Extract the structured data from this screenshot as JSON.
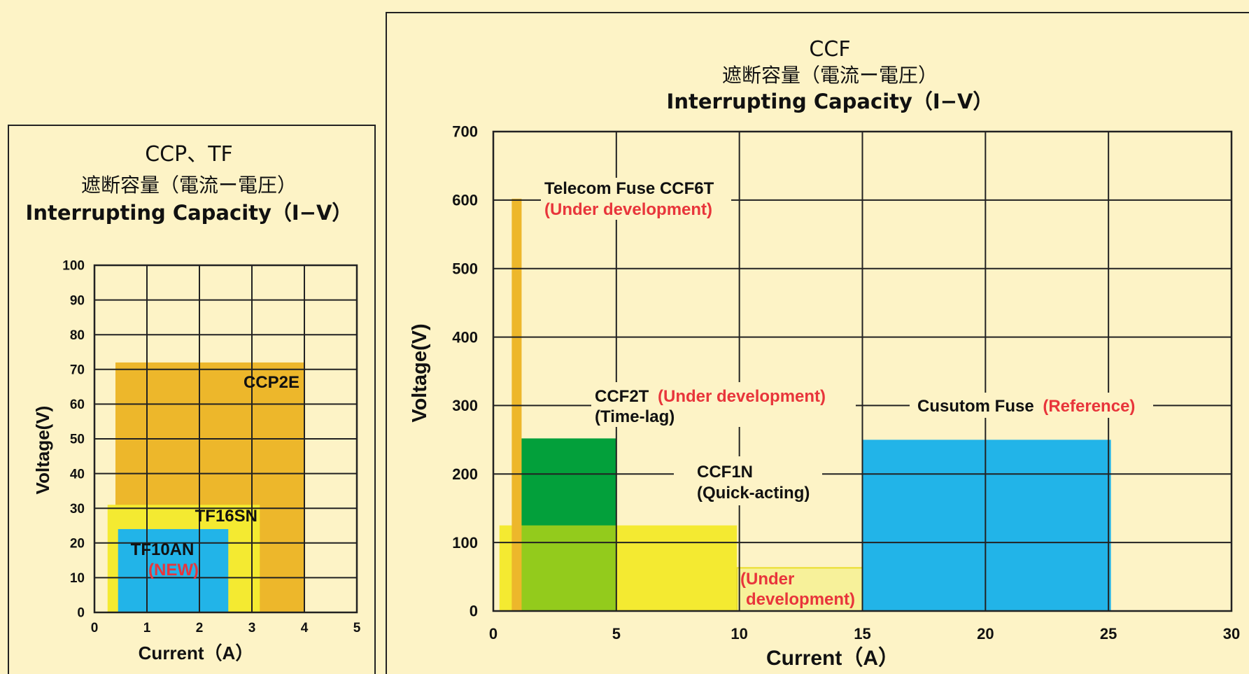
{
  "colors": {
    "background": "#fdf3c6",
    "orange": "#edb72b",
    "yellow": "#f4ea31",
    "light_yellow": "#f7f19a",
    "blue": "#22b4e8",
    "green": "#03a03b",
    "lime": "#93cb1c",
    "red_text": "#e8353b"
  },
  "chart_data": [
    {
      "type": "area",
      "title_line1": "CCP、TF",
      "title_line2": "遮断容量（電流ー電圧）",
      "title_line3": "Interrupting Capacity（I−V）",
      "xlabel": "Current（A）",
      "ylabel": "Voltage(V)",
      "xlim": [
        0,
        5
      ],
      "ylim": [
        0,
        100
      ],
      "grid": true,
      "xticks": [
        "0",
        "1",
        "2",
        "3",
        "4",
        "5"
      ],
      "yticks": [
        "0",
        "10",
        "20",
        "30",
        "40",
        "50",
        "60",
        "70",
        "80",
        "90",
        "100"
      ],
      "regions": [
        {
          "name": "CCP2E",
          "x": [
            0.4,
            4.0
          ],
          "y": [
            0,
            72
          ],
          "color": "orange"
        },
        {
          "name": "TF16SN",
          "x": [
            0.25,
            3.15
          ],
          "y": [
            0,
            31
          ],
          "color": "yellow"
        },
        {
          "name": "TF10AN",
          "note": "(NEW)",
          "x": [
            0.45,
            2.55
          ],
          "y": [
            0,
            24
          ],
          "color": "blue"
        }
      ]
    },
    {
      "type": "area",
      "title_line1": "CCF",
      "title_line2": "遮断容量（電流ー電圧）",
      "title_line3": "Interrupting Capacity（I−V）",
      "xlabel": "Current（A）",
      "ylabel": "Voltage(V)",
      "xlim": [
        0,
        30
      ],
      "ylim": [
        0,
        700
      ],
      "grid": true,
      "xticks": [
        "0",
        "5",
        "10",
        "15",
        "20",
        "25",
        "30"
      ],
      "yticks": [
        "0",
        "100",
        "200",
        "300",
        "400",
        "500",
        "600",
        "700"
      ],
      "regions": [
        {
          "name": "CCF1N",
          "x": [
            0.25,
            9.9
          ],
          "y": [
            0,
            125
          ],
          "color": "yellow"
        },
        {
          "name": "CCF2T",
          "x": [
            0.8,
            5.0
          ],
          "y": [
            0,
            252
          ],
          "color": "green"
        },
        {
          "name": "CCF2T ∩ CCF1N",
          "x": [
            0.8,
            5.0
          ],
          "y": [
            0,
            125
          ],
          "color": "lime"
        },
        {
          "name": "Telecom Fuse CCF6T",
          "x": [
            0.75,
            1.15
          ],
          "y": [
            0,
            602
          ],
          "color": "orange"
        },
        {
          "name": "Under development",
          "x": [
            9.9,
            15.0
          ],
          "y": [
            0,
            63
          ],
          "color": "light_yellow"
        },
        {
          "name": "Cusutom Fuse",
          "x": [
            15.0,
            25.1
          ],
          "y": [
            0,
            250
          ],
          "color": "blue"
        }
      ],
      "labels": {
        "ccf6t": {
          "text": "Telecom Fuse CCF6T",
          "note": "(Under development)"
        },
        "ccf2t": {
          "text": "CCF2T",
          "note": "(Under development)",
          "sub": "(Time-lag)"
        },
        "custom": {
          "text": "Cusutom Fuse",
          "note": "(Reference)"
        },
        "ccf1n": {
          "text": "CCF1N",
          "sub": "(Quick-acting)"
        },
        "dev": {
          "line1": "(Under",
          "line2": "development)"
        }
      }
    }
  ]
}
